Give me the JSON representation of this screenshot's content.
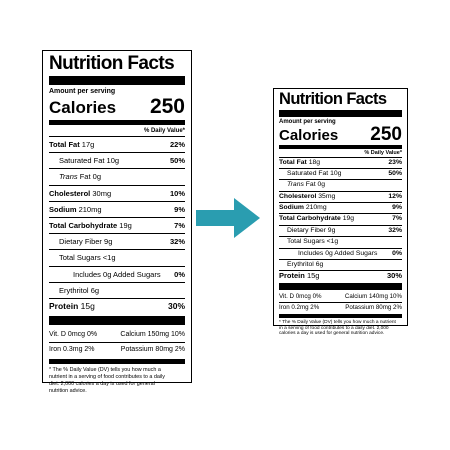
{
  "arrow_color": "#2a9db0",
  "arrow_icon": "right-arrow-icon",
  "labels": [
    {
      "title": "Nutrition Facts",
      "amount_per_serving": "Amount per serving",
      "calories_label": "Calories",
      "calories_value": "250",
      "daily_value_header": "% Daily Value*",
      "total_fat": {
        "label": "Total Fat",
        "amount": "17g",
        "pct": "22%"
      },
      "saturated_fat": {
        "label": "Saturated Fat",
        "amount": "10g",
        "pct": "50%"
      },
      "trans_fat": {
        "label": "Trans",
        "suffix": "Fat",
        "amount": "0g"
      },
      "cholesterol": {
        "label": "Cholesterol",
        "amount": "30mg",
        "pct": "10%"
      },
      "sodium": {
        "label": "Sodium",
        "amount": "210mg",
        "pct": "9%"
      },
      "total_carb": {
        "label": "Total Carbohydrate",
        "amount": "19g",
        "pct": "7%"
      },
      "dietary_fiber": {
        "label": "Dietary Fiber",
        "amount": "9g",
        "pct": "32%"
      },
      "total_sugars": {
        "label": "Total Sugars",
        "amount": "<1g"
      },
      "added_sugars": {
        "label": "Includes 0g Added Sugars",
        "pct": "0%"
      },
      "erythritol": {
        "label": "Erythritol",
        "amount": "6g"
      },
      "protein": {
        "label": "Protein",
        "amount": "15g",
        "pct": "30%"
      },
      "vitamins": [
        {
          "left": "Vit. D 0mcg 0%",
          "right": "Calcium 150mg 10%"
        },
        {
          "left": "Iron 0.3mg 2%",
          "right": "Potassium 80mg 2%"
        }
      ],
      "footnote": [
        "* The % Daily Value (DV) tells you how much a",
        "nutrient in a serving of food contributes to a daily",
        "diet. 2,000 calories a day is used for general",
        "nutrition advice."
      ]
    },
    {
      "title": "Nutrition Facts",
      "amount_per_serving": "Amount per serving",
      "calories_label": "Calories",
      "calories_value": "250",
      "daily_value_header": "% Daily Value*",
      "total_fat": {
        "label": "Total Fat",
        "amount": "18g",
        "pct": "23%"
      },
      "saturated_fat": {
        "label": "Saturated Fat",
        "amount": "10g",
        "pct": "50%"
      },
      "trans_fat": {
        "label": "Trans",
        "suffix": "Fat",
        "amount": "0g"
      },
      "cholesterol": {
        "label": "Cholesterol",
        "amount": "35mg",
        "pct": "12%"
      },
      "sodium": {
        "label": "Sodium",
        "amount": "210mg",
        "pct": "9%"
      },
      "total_carb": {
        "label": "Total Carbohydrate",
        "amount": "19g",
        "pct": "7%"
      },
      "dietary_fiber": {
        "label": "Dietary Fiber",
        "amount": "9g",
        "pct": "32%"
      },
      "total_sugars": {
        "label": "Total Sugars",
        "amount": "<1g"
      },
      "added_sugars": {
        "label": "Includes 0g Added Sugars",
        "pct": "0%"
      },
      "erythritol": {
        "label": "Erythritol",
        "amount": "6g"
      },
      "protein": {
        "label": "Protein",
        "amount": "15g",
        "pct": "30%"
      },
      "vitamins": [
        {
          "left": "Vit. D 0mcg 0%",
          "right": "Calcium 140mg 10%"
        },
        {
          "left": "Iron 0.2mg 2%",
          "right": "Potassium 80mg 2%"
        }
      ],
      "footnote": [
        "* The % Daily Value (DV) tells you how much a nutrient",
        "in a serving of food contributes to a daily diet. 2,000",
        "calories a day is used for general nutrition advice."
      ]
    }
  ]
}
